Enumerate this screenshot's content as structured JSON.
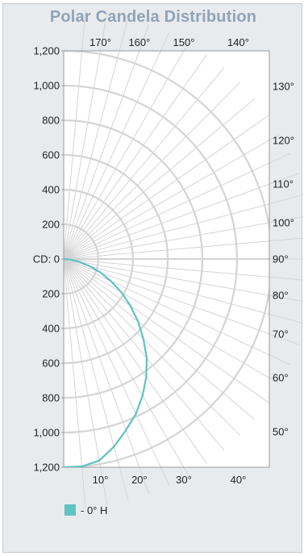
{
  "chart_data": {
    "type": "line",
    "title": "Polar Candela Distribution",
    "radial_unit_label": "CD",
    "rlim": [
      0,
      1200
    ],
    "radial_ticks": [
      "1,200",
      "1,000",
      "800",
      "600",
      "400",
      "200",
      "CD: 0",
      "200",
      "400",
      "600",
      "800",
      "1,000",
      "1,200"
    ],
    "angle_ticks_top": [
      "170°",
      "160°",
      "150°",
      "140°"
    ],
    "angle_ticks_right": [
      "130°",
      "120°",
      "110°",
      "100°",
      "90°",
      "80°",
      "70°",
      "60°",
      "50°"
    ],
    "angle_ticks_bottom": [
      "10°",
      "20°",
      "30°",
      "40°"
    ],
    "legend": "- 0° H",
    "colors": {
      "series": "#5fc3c0",
      "grid": "#d4d4d4",
      "title": "#8fa3b7"
    },
    "series": [
      {
        "name": "0° H",
        "angles_deg": [
          0,
          5,
          10,
          15,
          20,
          25,
          30,
          35,
          40,
          45,
          50,
          55,
          60,
          65,
          70,
          75,
          80,
          85,
          90
        ],
        "candela": [
          1200,
          1200,
          1180,
          1120,
          1050,
          985,
          910,
          830,
          745,
          650,
          560,
          470,
          385,
          300,
          225,
          150,
          90,
          40,
          0
        ]
      }
    ]
  }
}
